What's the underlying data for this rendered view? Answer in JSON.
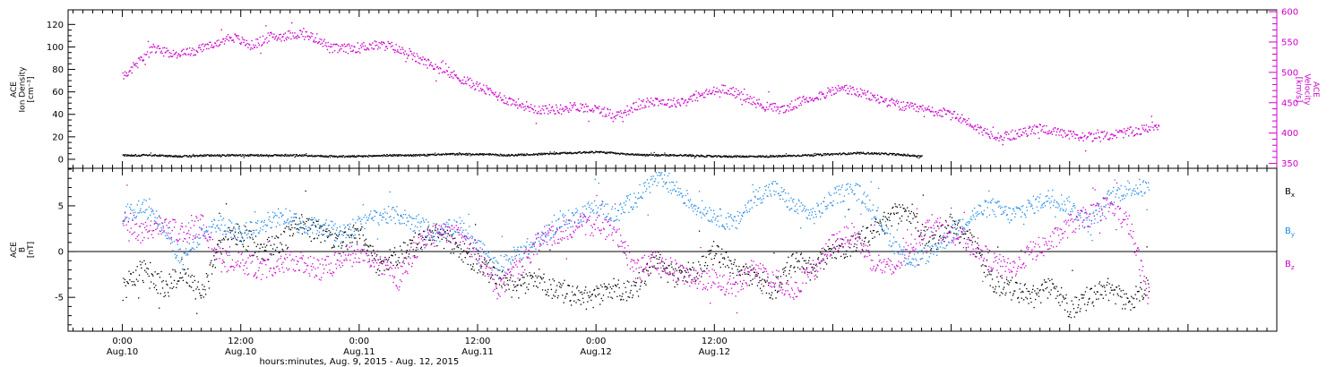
{
  "chart_data": [
    {
      "type": "scatter",
      "panel": "top",
      "ylabel_left": [
        "ACE",
        "Ion Density",
        "[cm⁻³]"
      ],
      "ylabel_right": [
        "ACE",
        "Velocity",
        "[km/s]"
      ],
      "left_axis": {
        "range": [
          -8,
          133
        ],
        "ticks": [
          0,
          20,
          40,
          60,
          80,
          100,
          120
        ]
      },
      "right_axis": {
        "range": [
          342,
          603
        ],
        "ticks": [
          350,
          400,
          450,
          500,
          550,
          600
        ]
      },
      "grid": false,
      "series": [
        {
          "name": "Ion Density",
          "axis": "left",
          "color": "#000000",
          "x": [
            0,
            3,
            6,
            9,
            12,
            15,
            18,
            21,
            24,
            27,
            30,
            33,
            36,
            39,
            42,
            45,
            48,
            51,
            54,
            57,
            60,
            63,
            66,
            69,
            72,
            75,
            78,
            81
          ],
          "y": [
            4,
            4,
            3,
            4,
            4,
            4,
            4,
            3,
            3,
            4,
            4,
            5,
            5,
            4,
            5,
            6,
            7,
            5,
            4,
            4,
            3,
            3,
            3,
            4,
            5,
            6,
            5,
            3
          ]
        },
        {
          "name": "Velocity",
          "axis": "right",
          "color": "#cc00cc",
          "x": [
            0,
            1.5,
            3,
            5,
            7,
            9,
            11,
            13,
            15,
            16,
            18,
            20,
            21,
            23,
            25,
            27,
            29,
            31,
            33,
            35,
            37,
            39,
            41,
            42,
            44,
            46,
            48,
            50,
            52,
            54,
            55.5,
            57,
            59,
            61,
            63,
            65,
            67,
            69,
            71,
            73,
            75,
            77,
            79,
            81,
            83,
            85,
            87,
            89,
            91,
            93,
            95,
            97,
            99,
            101,
            103,
            105
          ],
          "y": [
            495,
            515,
            540,
            530,
            535,
            545,
            560,
            545,
            560,
            560,
            565,
            555,
            540,
            540,
            545,
            545,
            530,
            515,
            500,
            485,
            470,
            455,
            445,
            440,
            440,
            445,
            440,
            430,
            445,
            455,
            450,
            455,
            465,
            475,
            460,
            445,
            440,
            455,
            465,
            475,
            465,
            455,
            445,
            440,
            435,
            425,
            405,
            395,
            400,
            410,
            400,
            395,
            395,
            400,
            405,
            415
          ]
        }
      ]
    },
    {
      "type": "scatter",
      "panel": "bottom",
      "ylabel_left": [
        "ACE",
        "B",
        "[nT]"
      ],
      "y_axis": {
        "range": [
          -8.7,
          9.1
        ],
        "ticks": [
          -5,
          0,
          5
        ]
      },
      "zero_line": true,
      "grid": false,
      "legend_position": "right",
      "series": [
        {
          "name": "B_x",
          "legend": {
            "base": "B",
            "sub": "x"
          },
          "color": "#000000",
          "x": [
            0,
            2,
            4,
            6,
            8,
            10,
            12,
            14,
            16,
            18,
            20,
            22,
            24,
            26,
            28,
            30,
            32,
            34,
            36,
            38,
            40,
            42,
            44,
            46,
            48,
            50,
            52,
            54,
            56,
            58,
            60,
            62,
            64,
            66,
            68,
            70,
            72,
            74,
            76,
            78,
            80,
            82,
            84,
            86,
            88,
            90,
            92,
            94,
            96,
            98,
            100,
            102,
            104
          ],
          "y": [
            -4,
            -2,
            -4,
            -2,
            -5,
            1,
            2,
            0,
            1,
            3,
            2,
            1,
            2,
            -2,
            0,
            1,
            2,
            0,
            -1,
            -3,
            -4,
            -3,
            -4,
            -5,
            -5,
            -4,
            -4,
            -1,
            -3,
            -2,
            0,
            -2,
            -3,
            -4,
            -1,
            -2,
            0,
            1,
            2,
            4,
            4,
            1,
            3,
            1,
            -3,
            -4,
            -5,
            -4,
            -6,
            -5,
            -4,
            -6,
            -3
          ]
        },
        {
          "name": "B_y",
          "legend": {
            "base": "B",
            "sub": "y"
          },
          "color": "#1e88e5",
          "x": [
            0,
            2,
            4,
            6,
            8,
            10,
            12,
            14,
            16,
            18,
            20,
            22,
            24,
            26,
            28,
            30,
            32,
            34,
            36,
            38,
            40,
            42,
            44,
            46,
            48,
            50,
            52,
            54,
            56,
            58,
            60,
            62,
            64,
            66,
            68,
            70,
            72,
            74,
            76,
            78,
            80,
            82,
            84,
            86,
            88,
            90,
            92,
            94,
            96,
            98,
            100,
            102,
            104
          ],
          "y": [
            4,
            5,
            3,
            -1,
            2,
            3,
            2,
            3,
            4,
            3,
            3,
            2,
            3,
            4,
            4,
            3,
            2,
            3,
            1,
            -2,
            0,
            1,
            3,
            4,
            5,
            4,
            6,
            8,
            7,
            5,
            4,
            3,
            6,
            7,
            5,
            4,
            6,
            7,
            5,
            1,
            -1,
            0,
            2,
            4,
            5,
            4,
            5,
            6,
            5,
            3,
            6,
            7,
            7
          ]
        },
        {
          "name": "B_z",
          "legend": {
            "base": "B",
            "sub": "z"
          },
          "color": "#cc00cc",
          "x": [
            0,
            2,
            4,
            6,
            8,
            10,
            12,
            14,
            16,
            18,
            20,
            22,
            24,
            26,
            28,
            30,
            32,
            34,
            36,
            38,
            40,
            42,
            44,
            46,
            48,
            50,
            52,
            54,
            56,
            58,
            60,
            62,
            64,
            66,
            68,
            70,
            72,
            74,
            76,
            78,
            80,
            82,
            84,
            86,
            88,
            90,
            92,
            94,
            96,
            98,
            100,
            102,
            104
          ],
          "y": [
            4,
            2,
            3,
            2,
            3,
            -1,
            -1,
            -2,
            -1,
            -1,
            -2,
            -1,
            0,
            -1,
            -3,
            1,
            2,
            2,
            0,
            -4,
            -2,
            1,
            2,
            3,
            3,
            2,
            -2,
            -1,
            -2,
            -3,
            -3,
            -4,
            -2,
            -3,
            -4,
            -2,
            1,
            2,
            -1,
            -2,
            1,
            3,
            2,
            1,
            -1,
            -2,
            0,
            1,
            3,
            4,
            5,
            3,
            -5
          ]
        }
      ]
    }
  ],
  "x_axis": {
    "range": [
      -5.5,
      117
    ],
    "ticks": [
      {
        "x": 0,
        "time": "0:00",
        "date": "Aug.10"
      },
      {
        "x": 12,
        "time": "12:00",
        "date": "Aug.10"
      },
      {
        "x": 24,
        "time": "0:00",
        "date": "Aug.11"
      },
      {
        "x": 36,
        "time": "12:00",
        "date": "Aug.11"
      },
      {
        "x": 48,
        "time": "0:00",
        "date": "Aug.12"
      },
      {
        "x": 60,
        "time": "12:00",
        "date": "Aug.12"
      }
    ],
    "title": "hours:minutes, Aug.  9, 2015 - Aug. 12, 2015"
  }
}
